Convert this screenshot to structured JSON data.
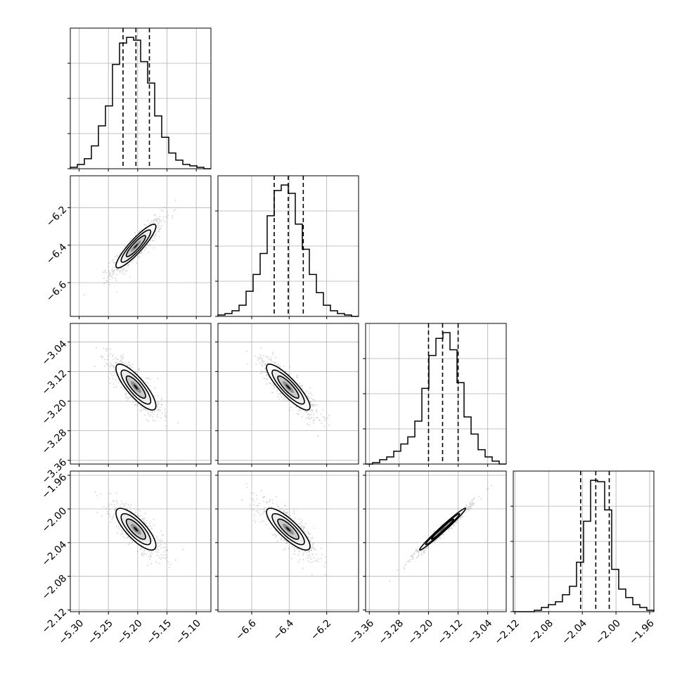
{
  "chart_data": {
    "type": "corner",
    "grid": true,
    "parameters": [
      {
        "range": [
          -5.315,
          -5.075
        ],
        "ticks": [
          -5.3,
          -5.25,
          -5.2,
          -5.15,
          -5.1
        ],
        "tick_labels": [
          "−5.30",
          "−5.25",
          "−5.20",
          "−5.15",
          "−5.10"
        ],
        "quantiles": [
          -5.225,
          -5.203,
          -5.18
        ],
        "histogram": {
          "edges": [
            -5.315,
            -5.303,
            -5.291,
            -5.279,
            -5.267,
            -5.255,
            -5.243,
            -5.231,
            -5.219,
            -5.207,
            -5.195,
            -5.183,
            -5.171,
            -5.159,
            -5.147,
            -5.135,
            -5.123,
            -5.111,
            -5.099,
            -5.087,
            -5.075
          ],
          "counts": [
            1,
            3,
            7,
            16,
            30,
            44,
            73,
            88,
            92,
            90,
            75,
            60,
            37,
            22,
            11,
            6,
            3,
            2,
            1,
            0
          ]
        }
      },
      {
        "range": [
          -6.78,
          -6.03
        ],
        "ticks": [
          -6.6,
          -6.4,
          -6.2
        ],
        "tick_labels": [
          "−6.6",
          "−6.4",
          "−6.2"
        ],
        "quantiles": [
          -6.48,
          -6.405,
          -6.325
        ],
        "histogram": {
          "edges": [
            -6.78,
            -6.7425,
            -6.705,
            -6.6675,
            -6.63,
            -6.5925,
            -6.555,
            -6.5175,
            -6.48,
            -6.4425,
            -6.405,
            -6.3675,
            -6.33,
            -6.2925,
            -6.255,
            -6.2175,
            -6.18,
            -6.1425,
            -6.105,
            -6.0675,
            -6.03
          ],
          "counts": [
            1,
            2,
            4,
            8,
            18,
            30,
            45,
            72,
            90,
            94,
            88,
            66,
            48,
            30,
            17,
            8,
            4,
            2,
            1,
            0
          ]
        }
      },
      {
        "range": [
          -3.37,
          -2.99
        ],
        "ticks": [
          -3.36,
          -3.28,
          -3.2,
          -3.12,
          -3.04
        ],
        "tick_labels": [
          "−3.36",
          "−3.28",
          "−3.20",
          "−3.12",
          "−3.04"
        ],
        "quantiles": [
          -3.2,
          -3.162,
          -3.12
        ],
        "histogram": {
          "edges": [
            -3.37,
            -3.351,
            -3.332,
            -3.313,
            -3.294,
            -3.275,
            -3.256,
            -3.237,
            -3.218,
            -3.199,
            -3.18,
            -3.161,
            -3.142,
            -3.123,
            -3.104,
            -3.085,
            -3.066,
            -3.047,
            -3.028,
            -3.009,
            -2.99
          ],
          "counts": [
            0,
            1,
            3,
            5,
            9,
            14,
            19,
            30,
            53,
            76,
            88,
            92,
            80,
            57,
            33,
            21,
            10,
            5,
            2,
            0
          ]
        }
      },
      {
        "range": [
          -2.122,
          -1.955
        ],
        "ticks": [
          -2.12,
          -2.08,
          -2.04,
          -2.0,
          -1.96
        ],
        "tick_labels": [
          "−2.12",
          "−2.08",
          "−2.04",
          "−2.00",
          "−1.96"
        ],
        "quantiles": [
          -2.042,
          -2.024,
          -2.008
        ],
        "histogram": {
          "edges": [
            -2.122,
            -2.11365,
            -2.1053,
            -2.09695,
            -2.0886,
            -2.08025,
            -2.0719,
            -2.06355,
            -2.0552,
            -2.04685,
            -2.0385,
            -2.03015,
            -2.0218,
            -2.01345,
            -2.0051,
            -1.99675,
            -1.9884,
            -1.98005,
            -1.9717,
            -1.96335,
            -1.955
          ],
          "counts": [
            0,
            0,
            0,
            1,
            3,
            5,
            7,
            12,
            18,
            35,
            64,
            93,
            92,
            72,
            30,
            16,
            10,
            5,
            3,
            1
          ]
        }
      }
    ],
    "pairs": [
      {
        "row": 1,
        "col": 0,
        "mean": [
          -5.203,
          -6.405
        ],
        "std": [
          0.022,
          0.075
        ],
        "corr": 0.9
      },
      {
        "row": 2,
        "col": 0,
        "mean": [
          -5.203,
          -3.162
        ],
        "std": [
          0.022,
          0.04
        ],
        "corr": -0.82
      },
      {
        "row": 2,
        "col": 1,
        "mean": [
          -6.405,
          -3.162
        ],
        "std": [
          0.075,
          0.04
        ],
        "corr": -0.86
      },
      {
        "row": 3,
        "col": 0,
        "mean": [
          -5.203,
          -2.024
        ],
        "std": [
          0.022,
          0.016
        ],
        "corr": -0.78
      },
      {
        "row": 3,
        "col": 1,
        "mean": [
          -6.405,
          -2.024
        ],
        "std": [
          0.075,
          0.016
        ],
        "corr": -0.82
      },
      {
        "row": 3,
        "col": 2,
        "mean": [
          -3.162,
          -2.024
        ],
        "std": [
          0.04,
          0.016
        ],
        "corr": 0.985
      }
    ],
    "colors": {
      "line": "#000000",
      "grid": "#b0b0b0",
      "points": "#808080",
      "contour_levels": [
        "#ffffff",
        "#ececec",
        "#c9c9c9",
        "#8f8f8f",
        "#1a1a1a"
      ]
    }
  }
}
